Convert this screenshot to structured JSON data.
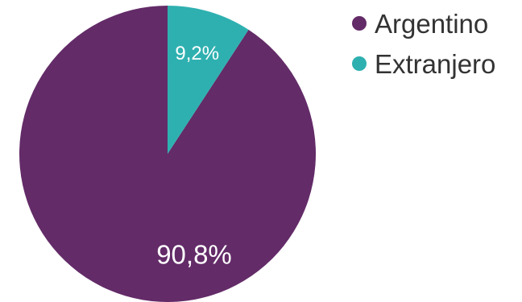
{
  "chart_data": {
    "type": "pie",
    "title": "",
    "start_angle_deg": 0,
    "direction": "counterclockwise",
    "slices": [
      {
        "name": "Argentino",
        "value": 90.8,
        "label": "90,8%",
        "color": "#632b68"
      },
      {
        "name": "Extranjero",
        "value": 9.2,
        "label": "9,2%",
        "color": "#2fb0b0"
      }
    ],
    "legend": {
      "placement": "top-right",
      "items": [
        {
          "label": "Argentino",
          "color": "#632b68"
        },
        {
          "label": "Extranjero",
          "color": "#2fb0b0"
        }
      ]
    }
  }
}
